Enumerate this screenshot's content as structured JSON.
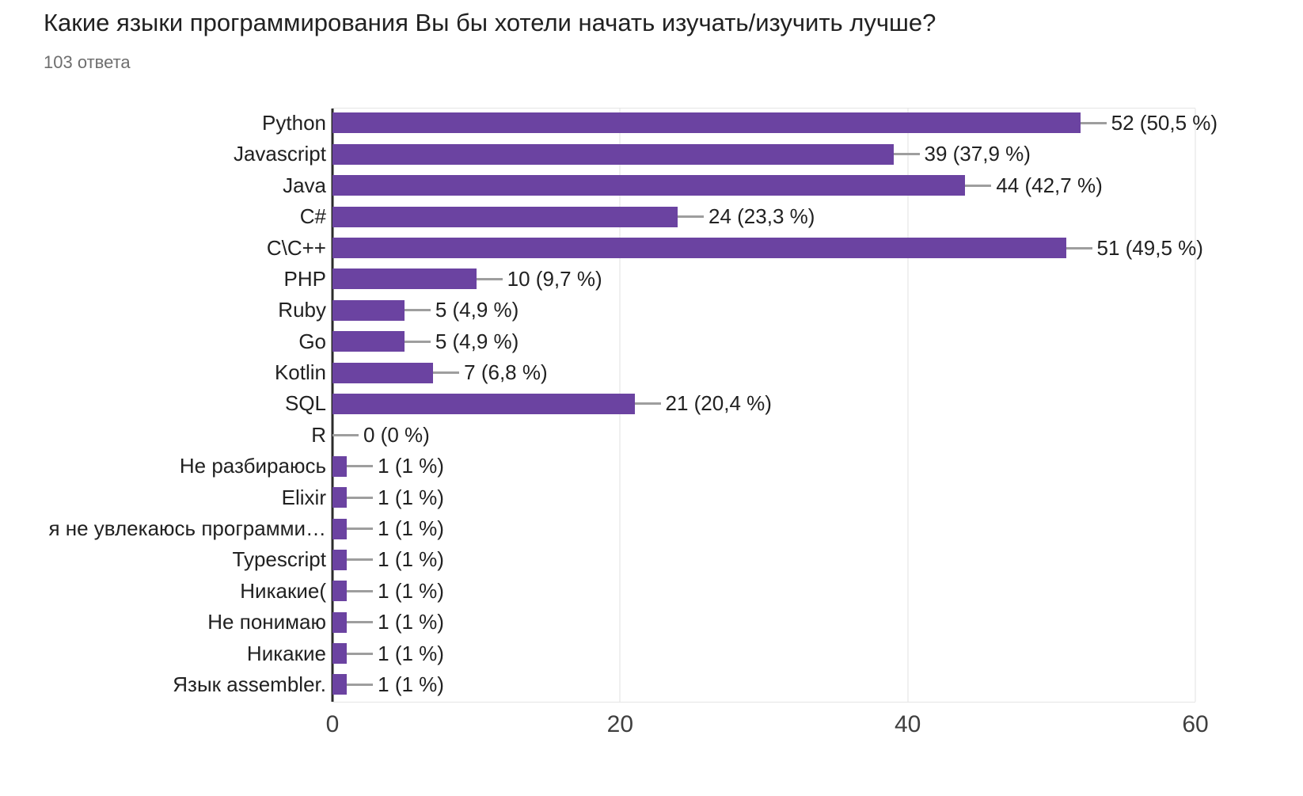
{
  "chart_data": {
    "type": "bar",
    "orientation": "horizontal",
    "title": "Какие языки программирования Вы бы хотели начать изучать/изучить лучше?",
    "subtitle": "103 ответа",
    "categories": [
      "Python",
      "Javascript",
      "Java",
      "C#",
      "C\\C++",
      "PHP",
      "Ruby",
      "Go",
      "Kotlin",
      "SQL",
      "R",
      "Не разбираюсь",
      "Elixir",
      "я не увлекаюсь программи…",
      "Typescript",
      "Никакие(",
      "Не понимаю",
      "Никакие",
      "Язык assembler."
    ],
    "values": [
      52,
      39,
      44,
      24,
      51,
      10,
      5,
      5,
      7,
      21,
      0,
      1,
      1,
      1,
      1,
      1,
      1,
      1,
      1
    ],
    "percents": [
      50.5,
      37.9,
      42.7,
      23.3,
      49.5,
      9.7,
      4.9,
      4.9,
      6.8,
      20.4,
      0,
      1,
      1,
      1,
      1,
      1,
      1,
      1,
      1
    ],
    "value_labels": [
      "52 (50,5 %)",
      "39 (37,9 %)",
      "44 (42,7 %)",
      "24 (23,3 %)",
      "51 (49,5 %)",
      "10 (9,7 %)",
      "5 (4,9 %)",
      "5 (4,9 %)",
      "7 (6,8 %)",
      "21 (20,4 %)",
      "0 (0 %)",
      "1 (1 %)",
      "1 (1 %)",
      "1 (1 %)",
      "1 (1 %)",
      "1 (1 %)",
      "1 (1 %)",
      "1 (1 %)",
      "1 (1 %)"
    ],
    "xlabel": "",
    "ylabel": "",
    "xticks": [
      0,
      20,
      40,
      60
    ],
    "xlim": [
      0,
      60
    ],
    "grid": "vertical-only",
    "legend": "none",
    "colors": {
      "bar": "#6b43a1",
      "connector_line": "#9e9e9e",
      "gridline": "#f0f0f0",
      "plot_border": "#e5e5e5",
      "axis_line": "#2a2a2a",
      "text": "#212121",
      "subtitle_text": "#6e6e6e",
      "tick_text": "#3f3f3f",
      "background": "#ffffff"
    }
  }
}
